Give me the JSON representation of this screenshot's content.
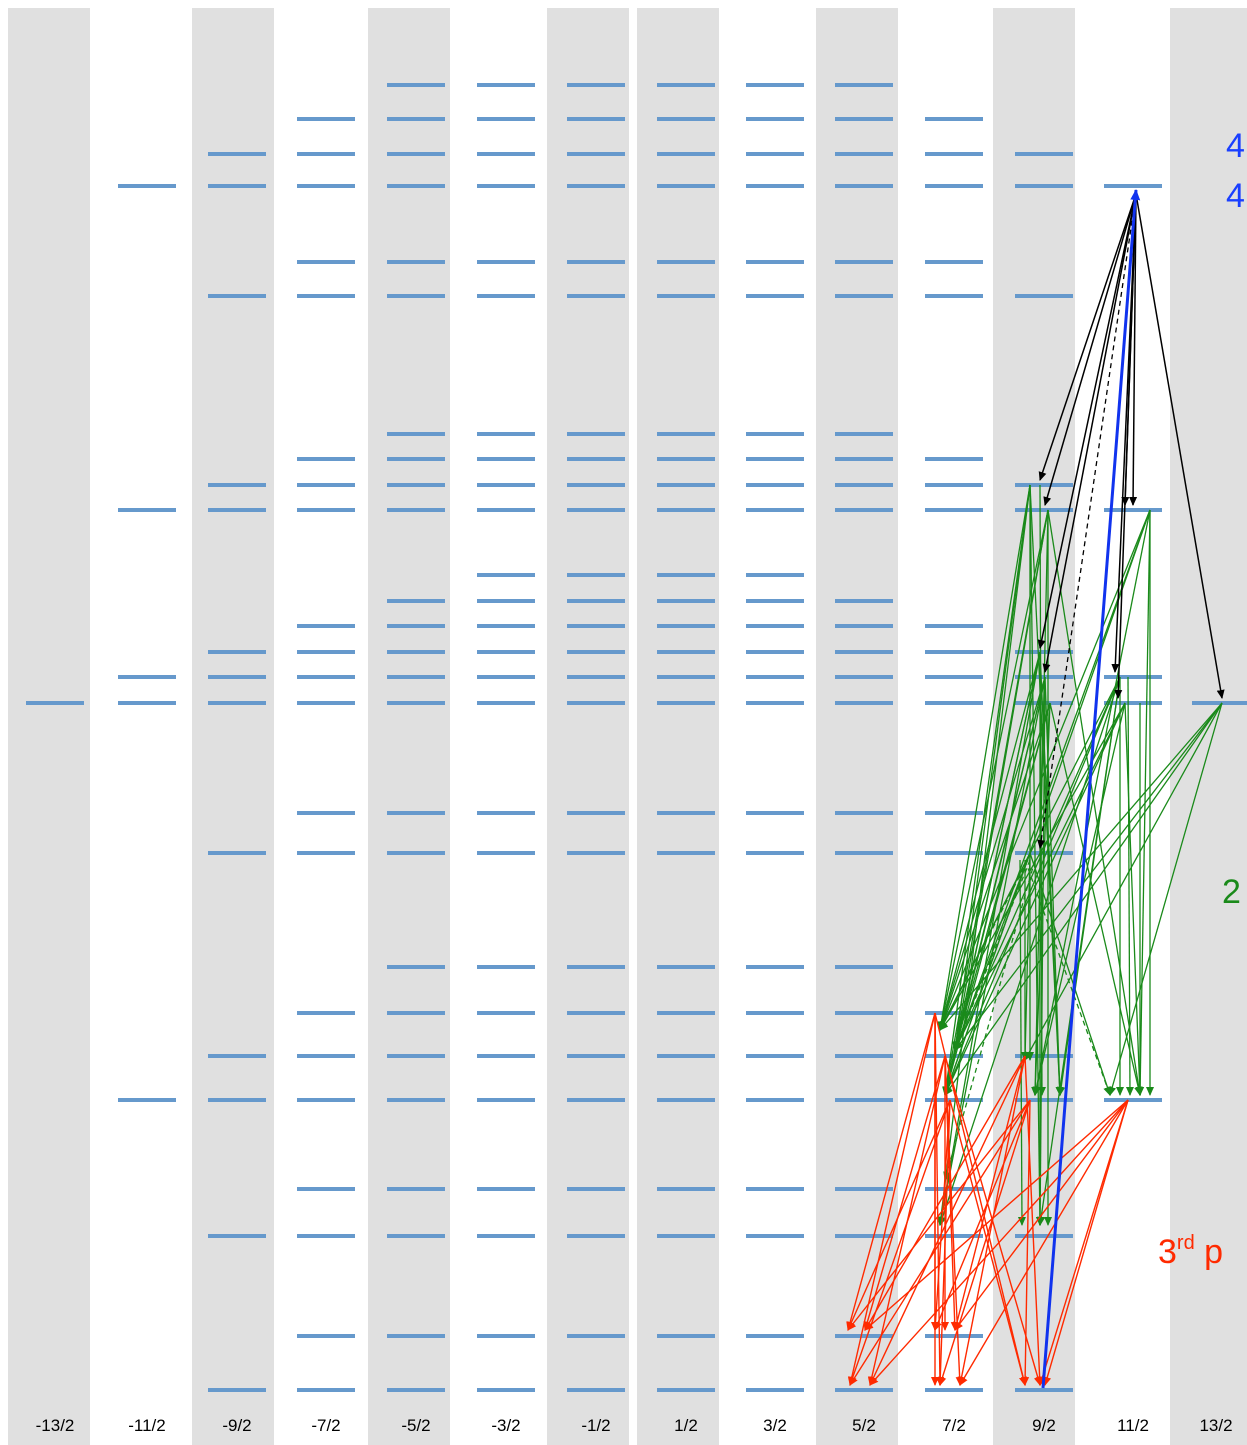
{
  "diagram": {
    "type": "energy-level transition diagram",
    "columns": [
      "-13/2",
      "-11/2",
      "-9/2",
      "-7/2",
      "-5/2",
      "-3/2",
      "-1/2",
      "1/2",
      "3/2",
      "5/2",
      "7/2",
      "9/2",
      "11/2",
      "13/2"
    ],
    "shaded_columns": [
      "-13/2",
      "-9/2",
      "-5/2",
      "-1/2",
      "1/2",
      "5/2",
      "9/2",
      "13/2"
    ],
    "level_color": "#6699cc",
    "column_shade_color": "#e0e0e0",
    "side_labels": {
      "blue_1": "4",
      "blue_2": "4",
      "green": "2",
      "red_main": "3",
      "red_sup": "rd",
      "red_tail": " p"
    },
    "colors": {
      "excitation": "#1133ee",
      "first_decay": "#000000",
      "second_decay": "#1a8a1a",
      "third_decay": "#ff2a00",
      "blue_label": "#1a3fff",
      "green_label": "#1a8a1a",
      "red_label": "#ff2a00"
    }
  }
}
